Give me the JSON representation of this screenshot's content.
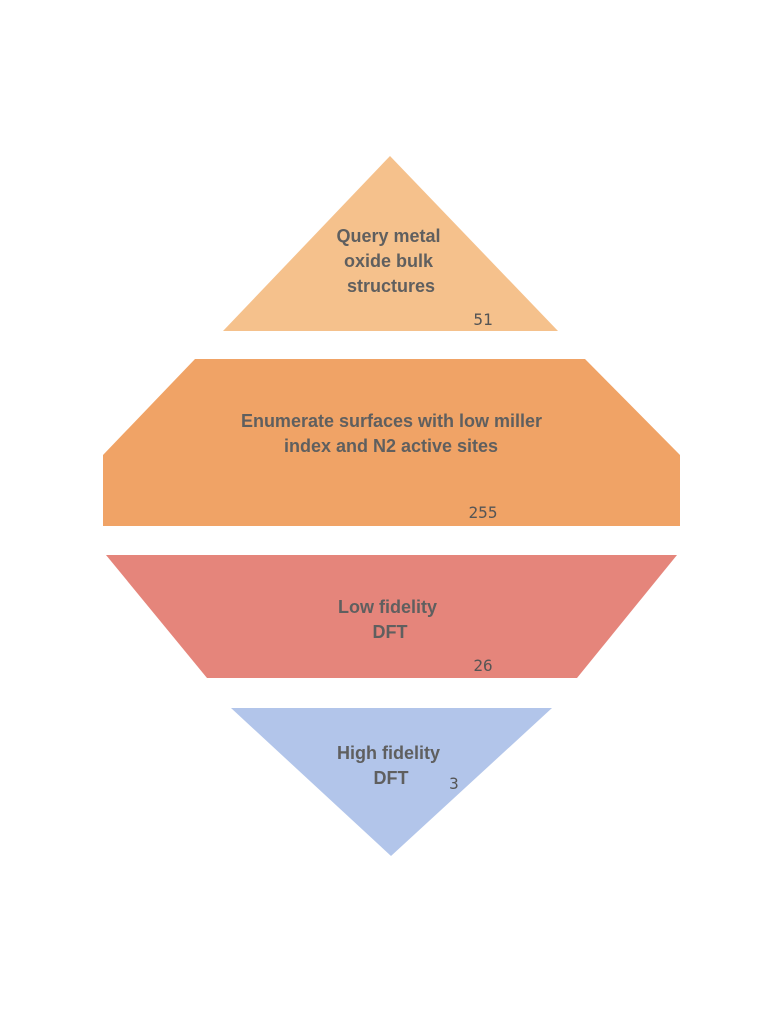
{
  "funnel": {
    "stages": [
      {
        "label_lines": [
          "Query metal",
          "oxide bulk",
          "structures"
        ],
        "count": "51",
        "color": "#f5c18c"
      },
      {
        "label_lines": [
          "Enumerate surfaces with low miller",
          "index and N2 active sites"
        ],
        "count": "255",
        "color": "#f0a366"
      },
      {
        "label_lines": [
          "Low fidelity",
          "DFT"
        ],
        "count": "26",
        "color": "#e5857b"
      },
      {
        "label_lines": [
          "High fidelity",
          "DFT"
        ],
        "count": "3",
        "color": "#b2c5ea"
      }
    ]
  }
}
